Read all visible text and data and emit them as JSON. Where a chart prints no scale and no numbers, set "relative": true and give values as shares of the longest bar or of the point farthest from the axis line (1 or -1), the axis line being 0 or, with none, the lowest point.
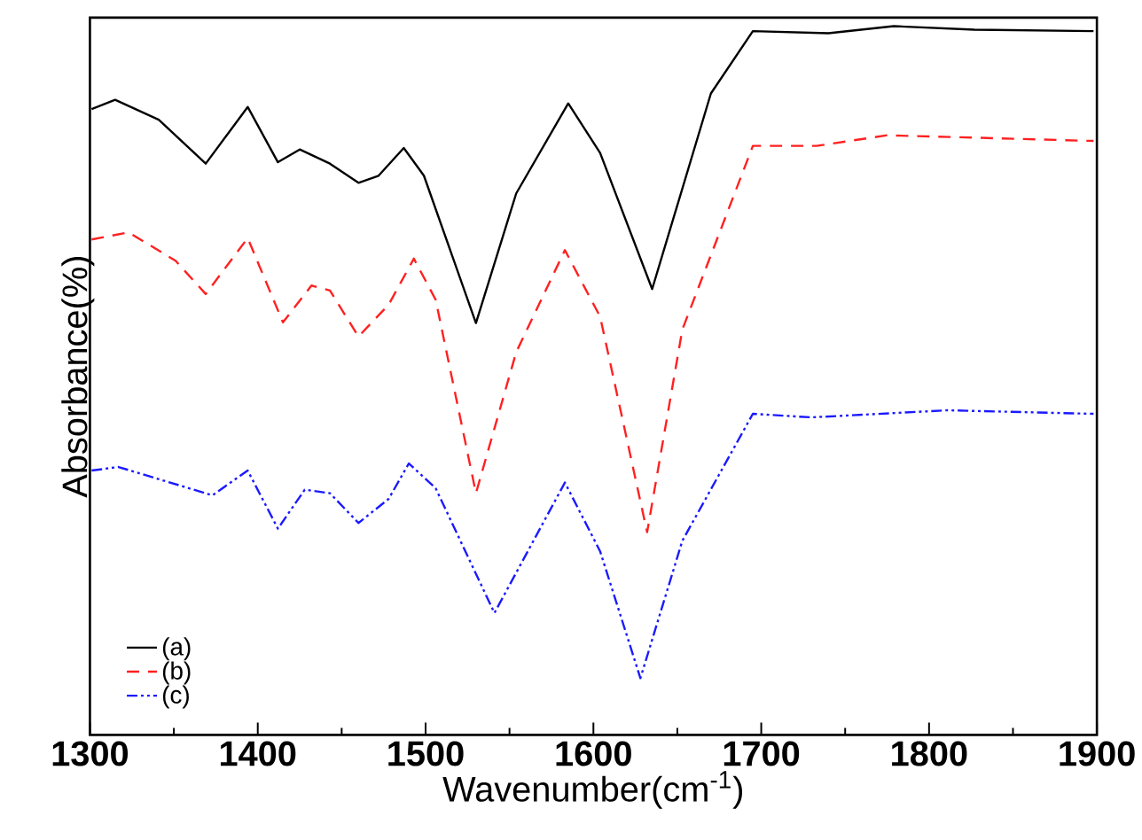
{
  "chart_data": {
    "type": "line",
    "xlabel": "Wavenumber(cm$^{-1}$)",
    "ylabel": "Absorbance(%)",
    "relative": true,
    "xlim": [
      1300,
      1900
    ],
    "xticks": [
      1300,
      1400,
      1500,
      1600,
      1700,
      1800,
      1900
    ],
    "grid": false,
    "legend": "bottom left",
    "marker": "none",
    "series": [
      {
        "name": "(a)",
        "color": "#000000",
        "line_style": "solid",
        "x": [
          1301,
          1315,
          1341,
          1369,
          1394,
          1412,
          1425,
          1443,
          1460,
          1472,
          1487,
          1499,
          1530,
          1554,
          1585,
          1604,
          1635,
          1670,
          1695,
          1740,
          1779,
          1827,
          1898
        ],
        "values": [
          0.883,
          0.896,
          0.868,
          0.806,
          0.886,
          0.808,
          0.826,
          0.806,
          0.779,
          0.789,
          0.828,
          0.789,
          0.581,
          0.764,
          0.891,
          0.821,
          0.629,
          0.905,
          0.993,
          0.99,
          1.0,
          0.995,
          0.993
        ]
      },
      {
        "name": "(b)",
        "color": "#ff2020",
        "line_style": "dashed",
        "x": [
          1301,
          1323,
          1351,
          1369,
          1394,
          1415,
          1432,
          1443,
          1460,
          1478,
          1493,
          1506,
          1530,
          1554,
          1583,
          1604,
          1632,
          1653,
          1695,
          1733,
          1775,
          1898
        ],
        "values": [
          0.699,
          0.709,
          0.669,
          0.622,
          0.701,
          0.582,
          0.634,
          0.627,
          0.562,
          0.607,
          0.672,
          0.614,
          0.341,
          0.54,
          0.684,
          0.59,
          0.286,
          0.572,
          0.831,
          0.831,
          0.846,
          0.838
        ]
      },
      {
        "name": "(c)",
        "color": "#1a1aff",
        "line_style": "dashdot",
        "x": [
          1301,
          1317,
          1373,
          1394,
          1412,
          1428,
          1443,
          1460,
          1478,
          1490,
          1506,
          1541,
          1583,
          1604,
          1628,
          1653,
          1695,
          1730,
          1811,
          1898
        ],
        "values": [
          0.373,
          0.378,
          0.338,
          0.373,
          0.291,
          0.346,
          0.341,
          0.299,
          0.333,
          0.383,
          0.348,
          0.172,
          0.356,
          0.259,
          0.08,
          0.274,
          0.453,
          0.448,
          0.458,
          0.453
        ]
      }
    ]
  }
}
